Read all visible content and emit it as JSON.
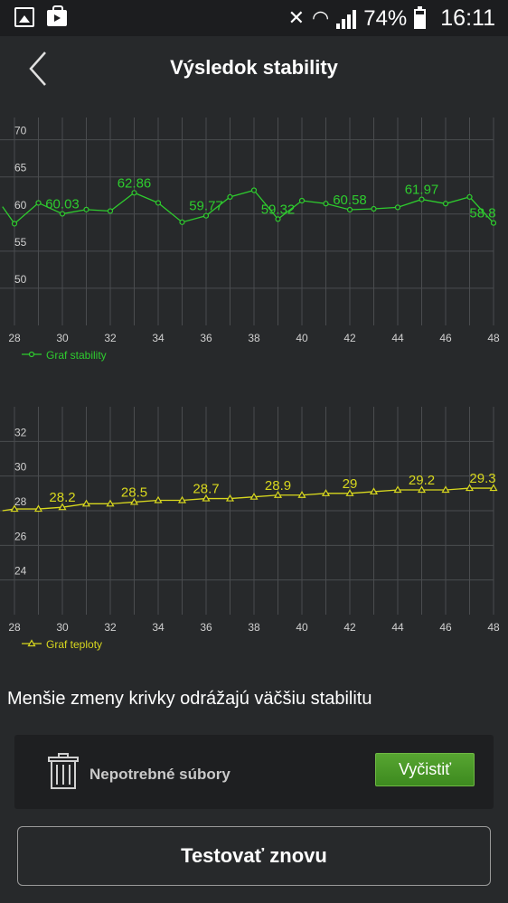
{
  "status_bar": {
    "battery_percent": "74%",
    "time": "16:11"
  },
  "header": {
    "title": "Výsledok stability"
  },
  "chart_data": [
    {
      "type": "line",
      "title": "",
      "legend": "Graf stability",
      "legend_position": "bottom-left",
      "color": "#2ecc2e",
      "grid": true,
      "x_ticks": [
        28,
        30,
        32,
        34,
        36,
        38,
        40,
        42,
        44,
        46,
        48
      ],
      "y_ticks": [
        50,
        55,
        60,
        65,
        70
      ],
      "xlim": [
        28,
        48
      ],
      "ylim": [
        45,
        73
      ],
      "x": [
        27.5,
        28,
        29,
        30,
        31,
        32,
        33,
        34,
        35,
        36,
        37,
        38,
        39,
        40,
        41,
        42,
        43,
        44,
        45,
        46,
        47,
        48
      ],
      "values": [
        61.0,
        58.7,
        61.5,
        60.03,
        60.6,
        60.4,
        62.86,
        61.5,
        58.9,
        59.77,
        62.3,
        63.2,
        59.32,
        61.8,
        61.4,
        60.58,
        60.7,
        60.9,
        61.97,
        61.4,
        62.3,
        58.8
      ],
      "data_labels": [
        {
          "x": 30,
          "label": "60.03"
        },
        {
          "x": 33,
          "label": "62.86"
        },
        {
          "x": 36,
          "label": "59.77"
        },
        {
          "x": 39,
          "label": "59.32"
        },
        {
          "x": 42,
          "label": "60.58"
        },
        {
          "x": 45,
          "label": "61.97"
        },
        {
          "x": 48,
          "label": "58.8"
        }
      ]
    },
    {
      "type": "line",
      "title": "",
      "legend": "Graf teploty",
      "legend_position": "bottom-left",
      "color": "#d8d81e",
      "grid": true,
      "x_ticks": [
        28,
        30,
        32,
        34,
        36,
        38,
        40,
        42,
        44,
        46,
        48
      ],
      "y_ticks": [
        24,
        26,
        28,
        30,
        32
      ],
      "xlim": [
        28,
        48
      ],
      "ylim": [
        22,
        34
      ],
      "x": [
        27.5,
        28,
        29,
        30,
        31,
        32,
        33,
        34,
        35,
        36,
        37,
        38,
        39,
        40,
        41,
        42,
        43,
        44,
        45,
        46,
        47,
        48
      ],
      "values": [
        28.0,
        28.1,
        28.1,
        28.2,
        28.4,
        28.4,
        28.5,
        28.6,
        28.6,
        28.7,
        28.7,
        28.8,
        28.9,
        28.9,
        29.0,
        29.0,
        29.1,
        29.2,
        29.2,
        29.2,
        29.3,
        29.3
      ],
      "data_labels": [
        {
          "x": 30,
          "label": "28.2"
        },
        {
          "x": 33,
          "label": "28.5"
        },
        {
          "x": 36,
          "label": "28.7"
        },
        {
          "x": 39,
          "label": "28.9"
        },
        {
          "x": 42,
          "label": "29"
        },
        {
          "x": 45,
          "label": "29.2"
        },
        {
          "x": 48,
          "label": "29.3"
        }
      ]
    }
  ],
  "info_text": "Menšie zmeny krivky odrážajú väčšiu stabilitu",
  "cleanup_card": {
    "label": "Nepotrebné súbory",
    "button_label": "Vyčistiť",
    "icon": "trash-icon"
  },
  "retest_button": "Testovať znovu",
  "colors": {
    "background": "#27292b",
    "stability_line": "#2ecc2e",
    "temperature_line": "#d8d81e",
    "clean_button": "#4a9a27"
  }
}
